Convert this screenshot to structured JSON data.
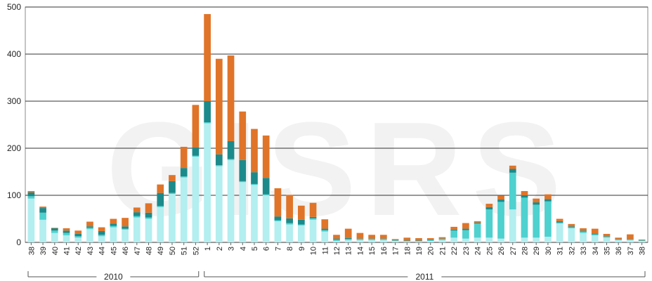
{
  "chart_data": {
    "type": "bar",
    "stacked": true,
    "watermark": "GISRS",
    "ylim": [
      0,
      500
    ],
    "yticks": [
      0,
      100,
      200,
      300,
      400,
      500
    ],
    "grid": true,
    "legend": "none",
    "categories": [
      "38",
      "39",
      "40",
      "41",
      "42",
      "43",
      "44",
      "45",
      "46",
      "47",
      "48",
      "49",
      "50",
      "51",
      "52",
      "1",
      "2",
      "3",
      "4",
      "5",
      "6",
      "7",
      "8",
      "9",
      "10",
      "11",
      "12",
      "13",
      "14",
      "15",
      "16",
      "17",
      "18",
      "19",
      "20",
      "21",
      "22",
      "23",
      "24",
      "25",
      "26",
      "27",
      "28",
      "29",
      "30",
      "31",
      "32",
      "33",
      "34",
      "35",
      "36",
      "37",
      "38"
    ],
    "year_groups": [
      {
        "label": "2010",
        "start": 0,
        "end": 14
      },
      {
        "label": "2011",
        "start": 15,
        "end": 52
      }
    ],
    "series": [
      {
        "color": "#b3eef0",
        "values": [
          93,
          48,
          20,
          15,
          10,
          28,
          13,
          32,
          27,
          53,
          50,
          75,
          103,
          138,
          182,
          253,
          162,
          175,
          128,
          122,
          100,
          45,
          38,
          36,
          48,
          23,
          3,
          5,
          5,
          5,
          5,
          3,
          2,
          2,
          3,
          5,
          10,
          8,
          10,
          10,
          8,
          70,
          10,
          10,
          12,
          40,
          30,
          20,
          15,
          10,
          5,
          5,
          3
        ]
      },
      {
        "color": "#4ed1cf",
        "values": [
          5,
          15,
          5,
          5,
          3,
          3,
          3,
          3,
          2,
          3,
          3,
          2,
          2,
          2,
          2,
          2,
          2,
          2,
          2,
          2,
          2,
          2,
          3,
          2,
          3,
          3,
          3,
          2,
          2,
          2,
          2,
          1,
          1,
          1,
          2,
          2,
          15,
          18,
          30,
          60,
          78,
          78,
          85,
          70,
          75,
          2,
          2,
          3,
          2,
          2,
          1,
          1,
          1
        ]
      },
      {
        "color": "#1c8a8a",
        "values": [
          8,
          10,
          5,
          5,
          5,
          3,
          8,
          5,
          5,
          8,
          10,
          28,
          25,
          18,
          18,
          45,
          23,
          38,
          45,
          25,
          35,
          8,
          10,
          10,
          3,
          3,
          2,
          2,
          1,
          1,
          1,
          1,
          1,
          1,
          1,
          1,
          2,
          3,
          2,
          5,
          5,
          8,
          5,
          5,
          5,
          3,
          2,
          2,
          2,
          1,
          1,
          1,
          1
        ]
      },
      {
        "color": "#e07428",
        "values": [
          3,
          3,
          1,
          5,
          7,
          10,
          8,
          10,
          18,
          10,
          20,
          18,
          13,
          45,
          90,
          185,
          203,
          182,
          103,
          92,
          90,
          60,
          50,
          30,
          30,
          20,
          8,
          20,
          12,
          8,
          8,
          2,
          6,
          5,
          3,
          3,
          6,
          12,
          3,
          7,
          8,
          7,
          9,
          8,
          10,
          5,
          5,
          5,
          10,
          5,
          3,
          10,
          1
        ]
      }
    ]
  }
}
